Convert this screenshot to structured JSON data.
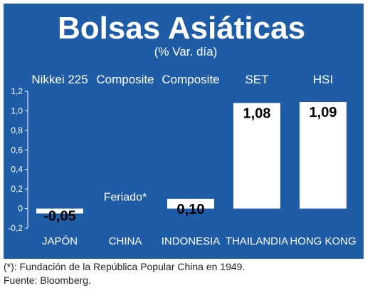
{
  "chart_data": {
    "type": "bar",
    "title": "Bolsas Asiáticas",
    "subtitle": "(% Var. día)",
    "index_names": [
      "Nikkei 225",
      "Composite",
      "Composite",
      "SET",
      "HSI"
    ],
    "categories": [
      "JAPÓN",
      "CHINA",
      "INDONESIA",
      "THAILANDIA",
      "HONG KONG"
    ],
    "values": [
      -0.05,
      null,
      0.1,
      1.08,
      1.09
    ],
    "value_labels": [
      "-0,05",
      "",
      "0,10",
      "1,08",
      "1,09"
    ],
    "annotations": [
      {
        "category": "CHINA",
        "text": "Feriado*"
      }
    ],
    "ylim": [
      -0.2,
      1.2
    ],
    "yticks": [
      -0.2,
      0,
      0.2,
      0.4,
      0.6,
      0.8,
      1.0,
      1.2
    ],
    "ytick_labels": [
      "-0,2",
      "0",
      "0,2",
      "0,4",
      "0,6",
      "0,8",
      "1,0",
      "1,2"
    ],
    "grid": false,
    "colors": {
      "background": "#1f5ca8",
      "bar": "#ffffff",
      "text": "#ffffff",
      "value_text": "#000000"
    }
  },
  "footer": {
    "note": "(*): Fundación de la República Popular China en 1949.",
    "source": "Fuente: Bloomberg."
  }
}
